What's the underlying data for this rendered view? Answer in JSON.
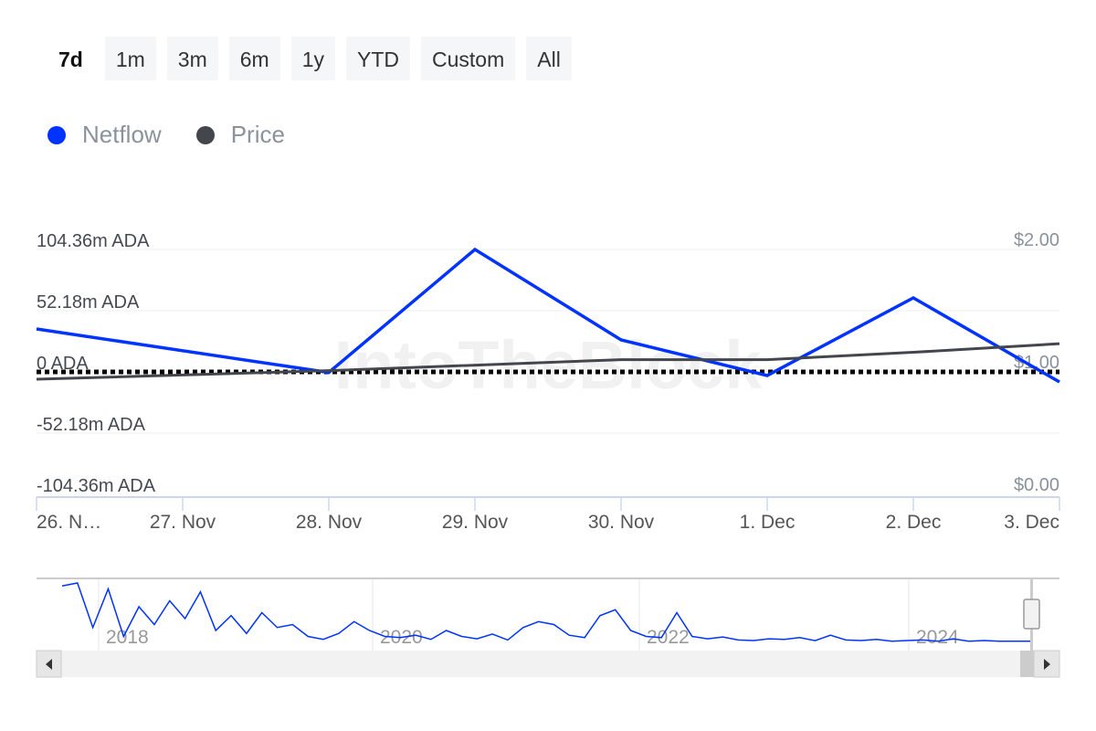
{
  "range_buttons": [
    {
      "label": "7d",
      "active": true
    },
    {
      "label": "1m"
    },
    {
      "label": "3m"
    },
    {
      "label": "6m"
    },
    {
      "label": "1y"
    },
    {
      "label": "YTD"
    },
    {
      "label": "Custom"
    },
    {
      "label": "All"
    }
  ],
  "watermark": "IntoTheBlock",
  "chart_data": {
    "type": "line",
    "categories": [
      "26. N…",
      "27. Nov",
      "28. Nov",
      "29. Nov",
      "30. Nov",
      "1. Dec",
      "2. Dec",
      "3. Dec"
    ],
    "legend": {
      "placement": "top-left"
    },
    "colors": {
      "Netflow": "#0033ff",
      "Price": "#43474d"
    },
    "y_left": {
      "ticks": [
        "104.36m ADA",
        "52.18m ADA",
        "0 ADA",
        "-52.18m ADA",
        "-104.36m ADA"
      ],
      "range": [
        -104.36,
        104.36
      ],
      "unit": "m ADA"
    },
    "y_right": {
      "ticks": [
        "$2.00",
        "$1.00",
        "$0.00"
      ],
      "range": [
        0,
        2
      ]
    },
    "grid": true,
    "series": [
      {
        "name": "Netflow",
        "axis": "left",
        "x": [
          "26 Nov",
          "28 Nov",
          "29 Nov",
          "30 Nov",
          "1 Dec",
          "2 Dec",
          "3 Dec"
        ],
        "values": [
          36.6,
          -0.5,
          104.36,
          27.3,
          -3.1,
          63.1,
          -8.6
        ]
      },
      {
        "name": "Price",
        "axis": "right",
        "x": [
          "26 Nov",
          "28 Nov",
          "30 Nov",
          "1 Dec",
          "2 Dec",
          "3 Dec"
        ],
        "values": [
          0.94,
          1.01,
          1.1,
          1.1,
          1.16,
          1.23
        ]
      }
    ],
    "zero_line": "dotted",
    "navigator": {
      "year_labels": [
        "2018",
        "2020",
        "2022",
        "2024"
      ],
      "values": [
        95,
        100,
        25,
        90,
        10,
        60,
        30,
        70,
        40,
        85,
        20,
        45,
        15,
        50,
        25,
        30,
        10,
        5,
        15,
        35,
        20,
        10,
        8,
        12,
        5,
        20,
        10,
        6,
        14,
        4,
        25,
        35,
        30,
        12,
        8,
        45,
        55,
        20,
        10,
        8,
        50,
        10,
        6,
        9,
        4,
        3,
        6,
        5,
        8,
        3,
        12,
        4,
        3,
        5,
        2,
        3,
        4,
        2,
        6,
        2,
        3,
        2,
        2,
        2
      ]
    }
  }
}
